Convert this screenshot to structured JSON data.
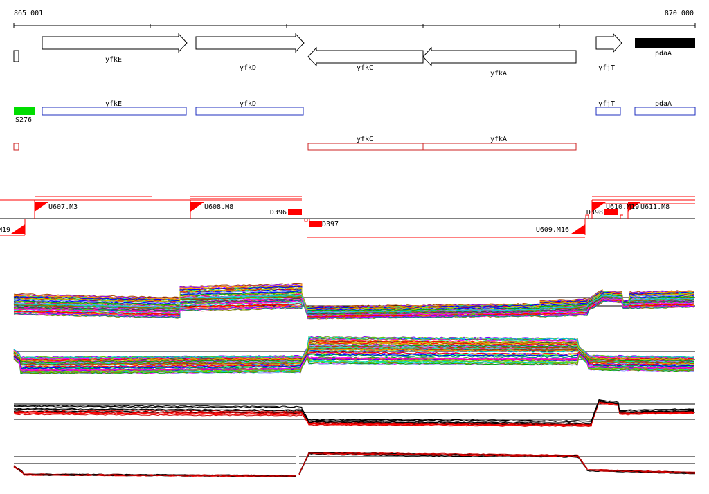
{
  "ruler": {
    "start_label": "865 001",
    "end_label": "870 000",
    "start": 865001,
    "end": 870000
  },
  "genes": [
    {
      "name": "yfkE",
      "start": 865201,
      "end": 866260,
      "strand": "+"
    },
    {
      "name": "yfkD",
      "start": 866331,
      "end": 867130,
      "strand": "+"
    },
    {
      "name": "yfkC",
      "start": 867165,
      "end": 868020,
      "strand": "-"
    },
    {
      "name": "yfkA",
      "start": 868020,
      "end": 869140,
      "strand": "-"
    },
    {
      "name": "yfjT",
      "start": 869205,
      "end": 869390,
      "strand": "+"
    },
    {
      "name": "pdaA",
      "start": 869490,
      "end": 869935,
      "strand": "filled"
    }
  ],
  "features": {
    "s_label": "S276",
    "forward_genes": [
      "yfkE",
      "yfkD",
      "yfjT",
      "pdaA"
    ],
    "reverse_genes": [
      "yfkC",
      "yfkA"
    ]
  },
  "segments": {
    "upper": [
      {
        "label": "U607.M3"
      },
      {
        "label": "U608.M8"
      },
      {
        "label": "U610.M19"
      },
      {
        "label": "U611.M8"
      }
    ],
    "lower": [
      {
        "label": "M19"
      },
      {
        "label": "U609.M16"
      }
    ],
    "d_marks": [
      {
        "label": "D396"
      },
      {
        "label": "D397"
      },
      {
        "label": "D398"
      }
    ]
  },
  "colors": {
    "forward": "#1f2fbf",
    "reverse": "#cc2222",
    "highlight": "#00dd00",
    "red": "#ff0000",
    "black": "#000000"
  }
}
